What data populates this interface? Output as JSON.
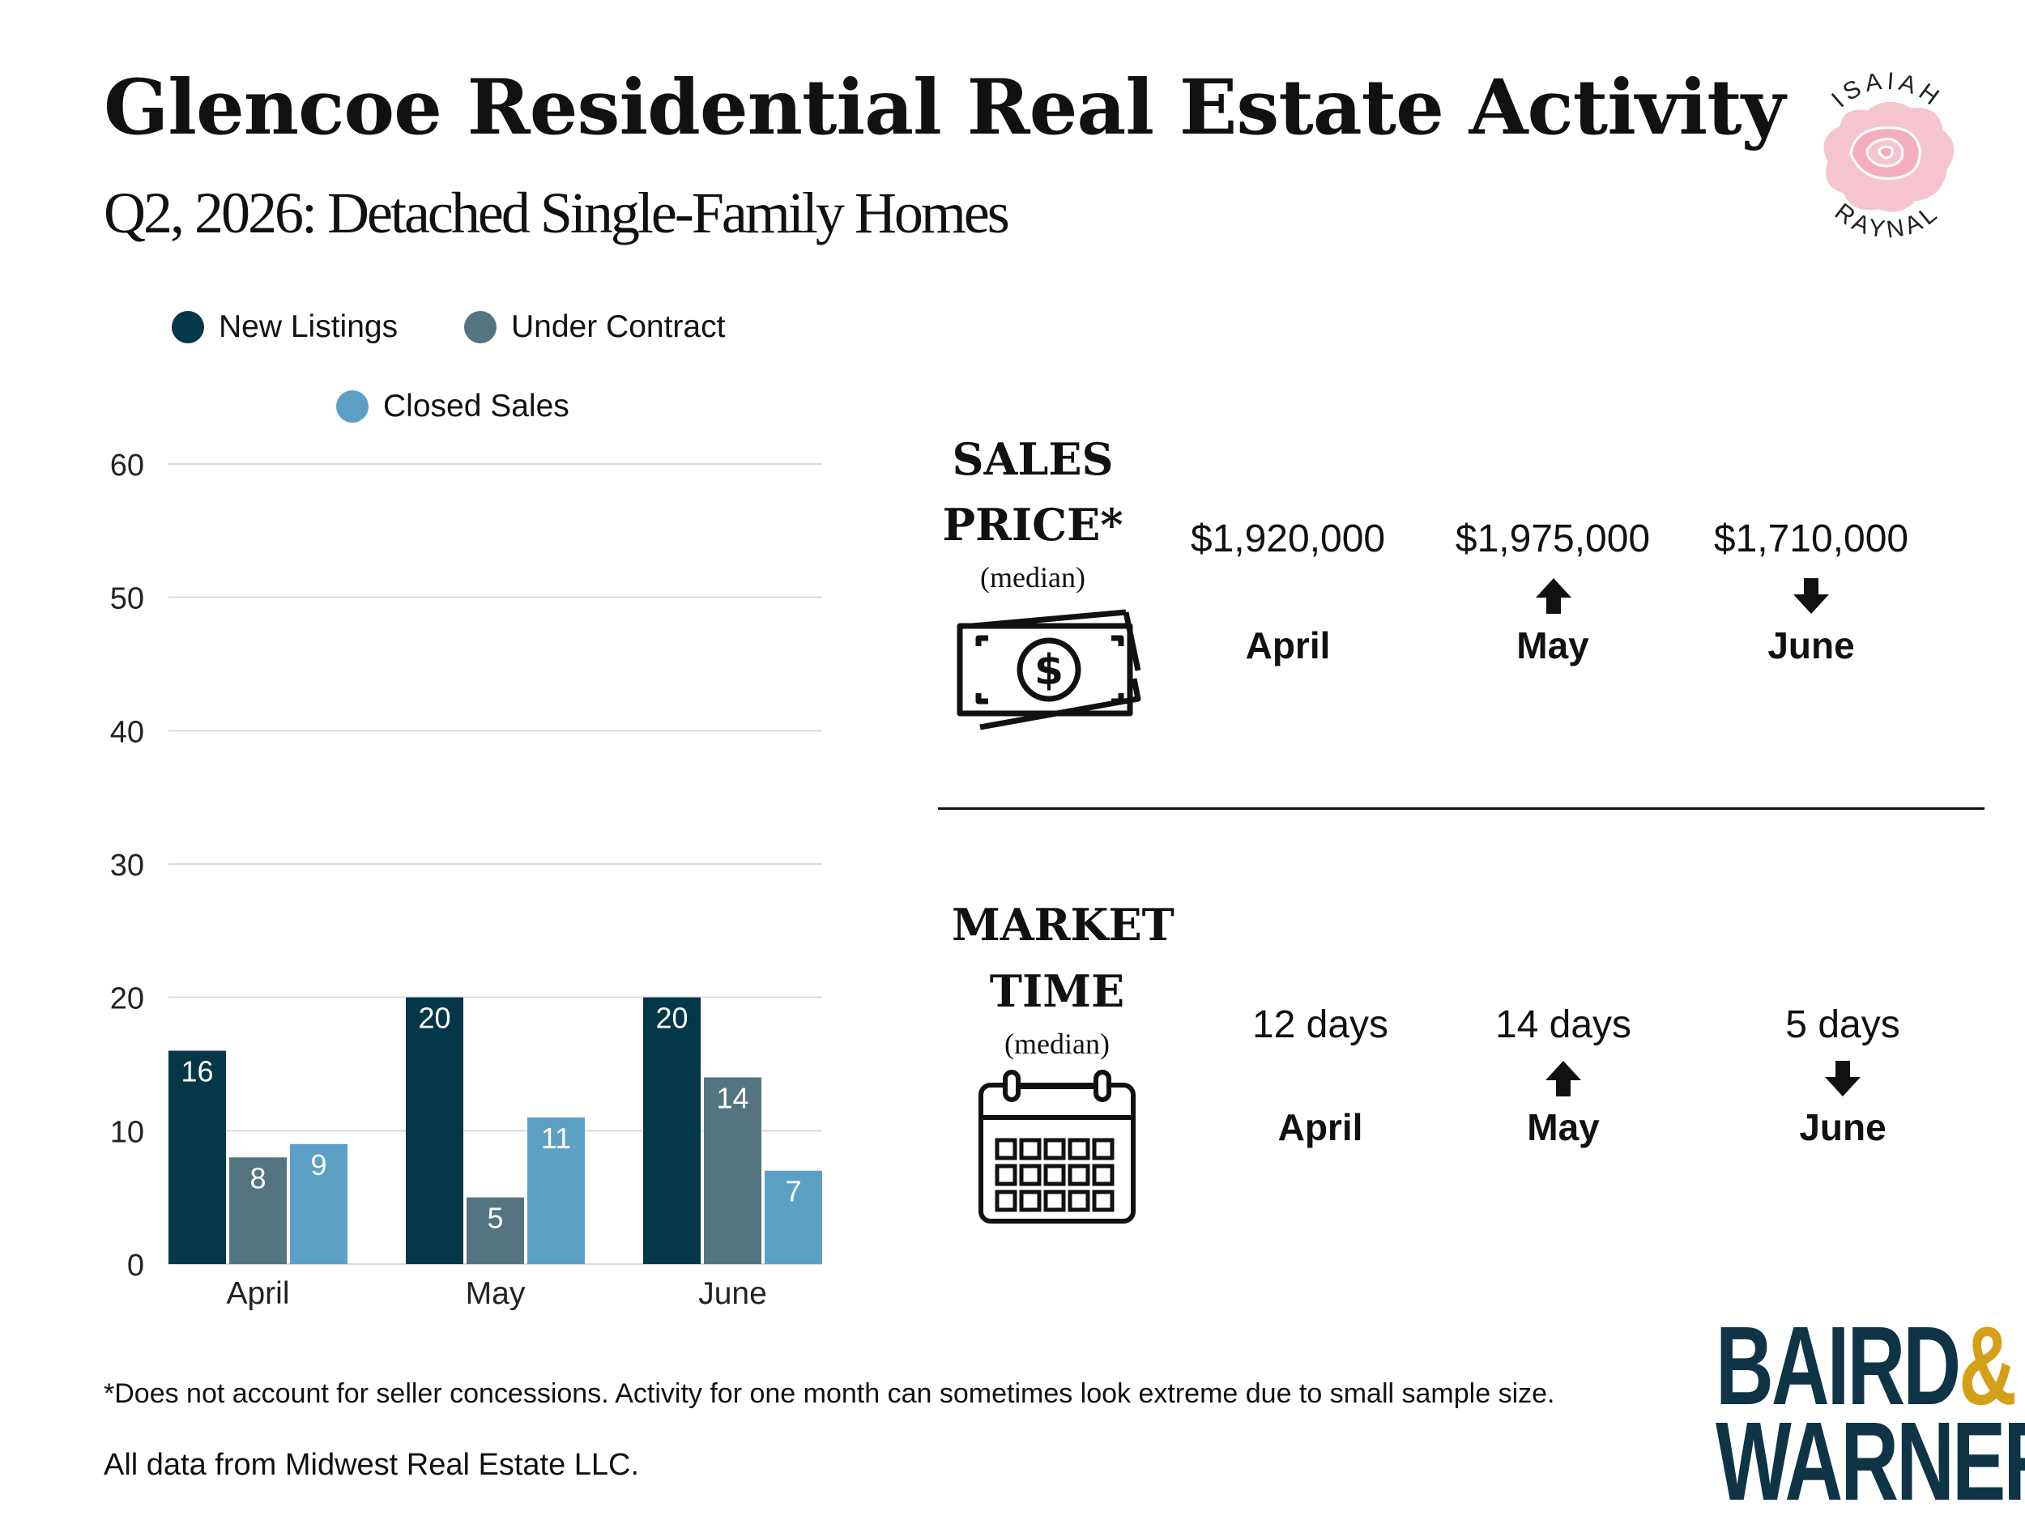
{
  "title": "Glencoe Residential Real Estate Activity",
  "subtitle": "Q2, 2026: Detached Single-Family Homes",
  "colors": {
    "new_listings": "#043747",
    "under_contract": "#557481",
    "closed_sales": "#5da0c6",
    "grid": "#d9d9d9",
    "logo_navy": "#0f3446",
    "logo_gold": "#d4a017",
    "rose": "#f6c4cf"
  },
  "chart_data": {
    "type": "bar",
    "title": "",
    "xlabel": "",
    "ylabel": "",
    "categories": [
      "April",
      "May",
      "June"
    ],
    "series": [
      {
        "name": "New Listings",
        "values": [
          16,
          20,
          20
        ]
      },
      {
        "name": "Under Contract",
        "values": [
          8,
          5,
          14
        ]
      },
      {
        "name": "Closed Sales",
        "values": [
          9,
          11,
          7
        ]
      }
    ],
    "ylim": [
      0,
      60
    ],
    "yticks": [
      0,
      10,
      20,
      30,
      40,
      50,
      60
    ],
    "grid": true,
    "legend_position": "top-left",
    "data_labels": true
  },
  "sales_price": {
    "title_line1": "SALES",
    "title_line2": "PRICE*",
    "note": "(median)",
    "icon": "money-bill-icon",
    "months": [
      {
        "month": "April",
        "value": "$1,920,000",
        "trend": "none"
      },
      {
        "month": "May",
        "value": "$1,975,000",
        "trend": "up"
      },
      {
        "month": "June",
        "value": "$1,710,000",
        "trend": "down"
      }
    ]
  },
  "market_time": {
    "title_line1": "MARKET",
    "title_line2": "TIME",
    "note": "(median)",
    "icon": "calendar-icon",
    "months": [
      {
        "month": "April",
        "value": "12 days",
        "trend": "none"
      },
      {
        "month": "May",
        "value": "14 days",
        "trend": "up"
      },
      {
        "month": "June",
        "value": "5 days",
        "trend": "down"
      }
    ]
  },
  "footnote": "*Does not account for seller concessions. Activity for one month can sometimes look extreme due to small sample size.",
  "source": "All data from Midwest Real Estate LLC.",
  "agent_logo": {
    "top_text": "ISAIAH",
    "bottom_text": "RAYNAL",
    "icon": "rose-icon"
  },
  "brand_logo": {
    "line1": "BAIRD",
    "amp": "&",
    "line2": "WARNER"
  }
}
